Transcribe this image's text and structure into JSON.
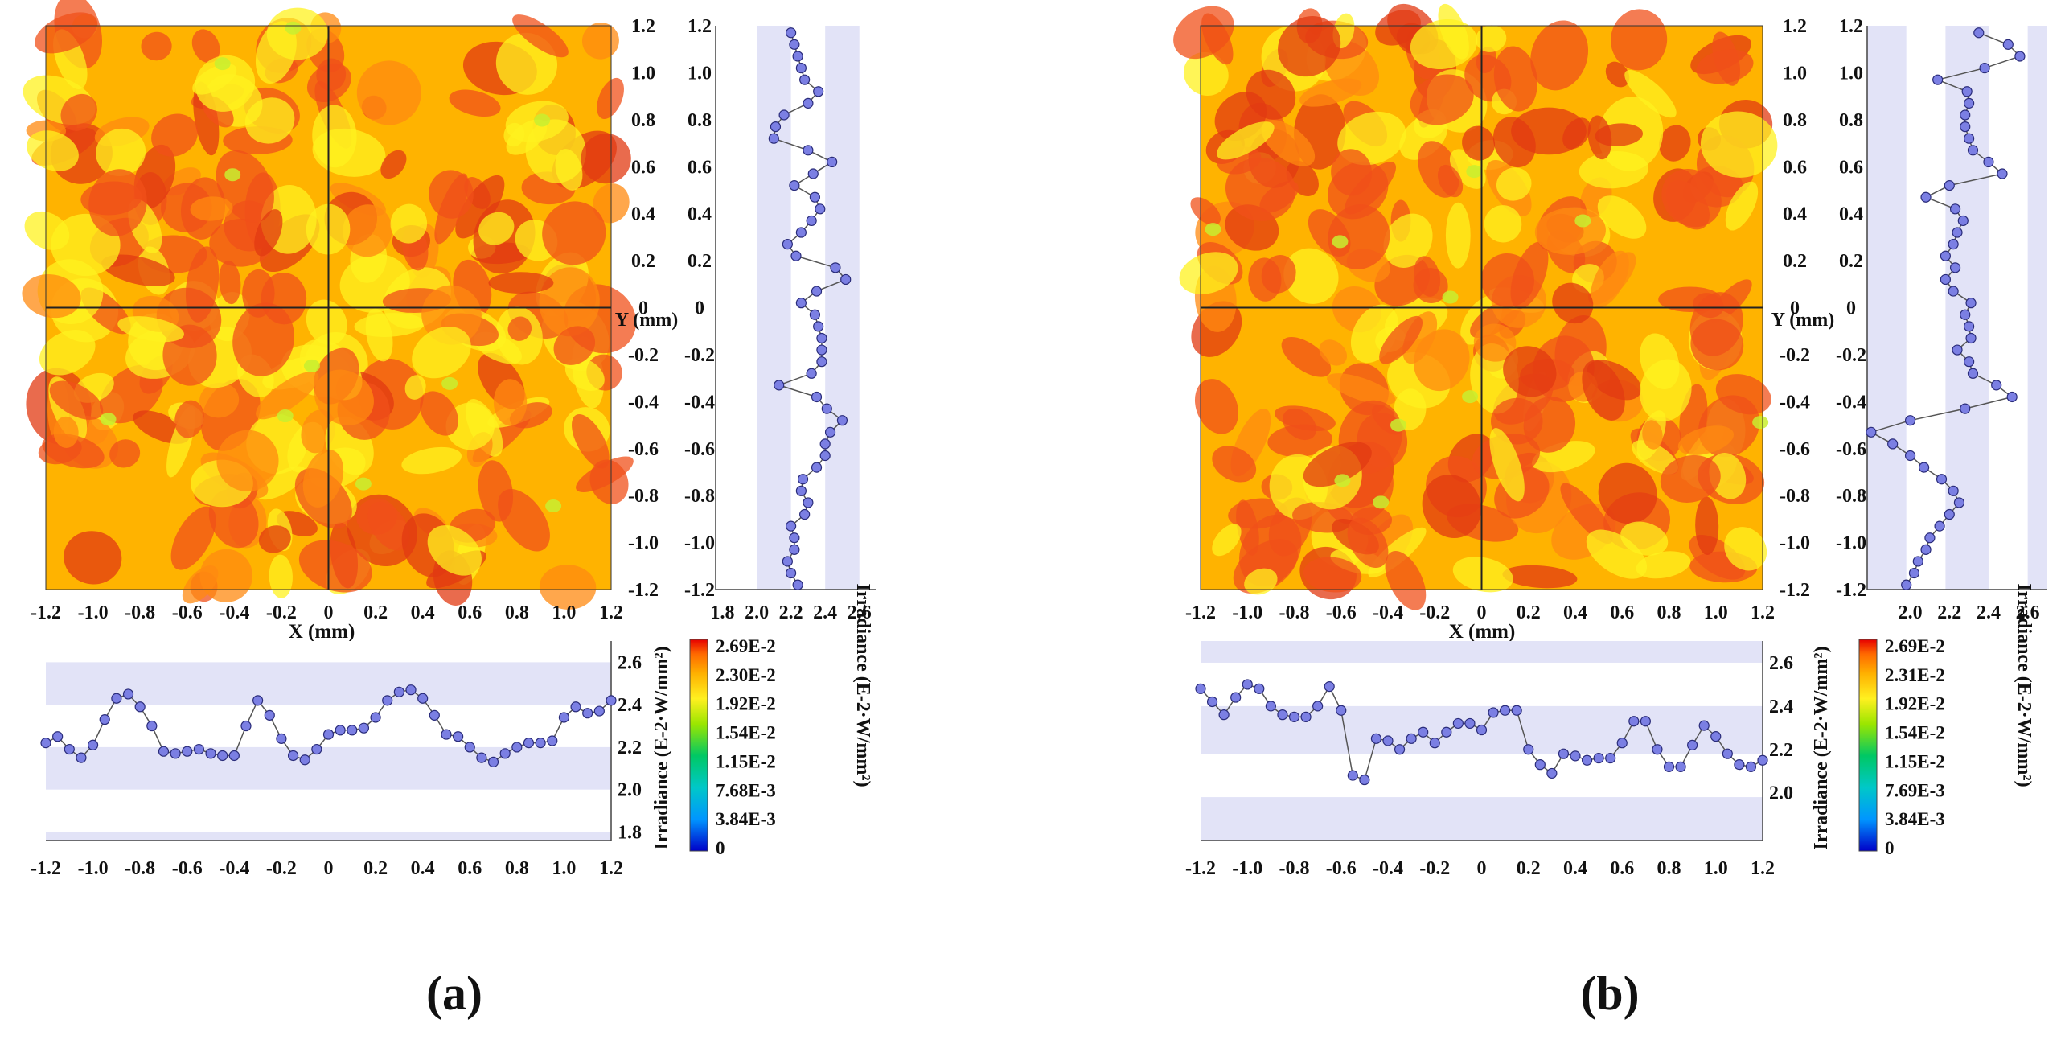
{
  "panels": [
    {
      "label": "(a)"
    },
    {
      "label": "(b)"
    }
  ],
  "colors": {
    "marker_fill": "#7b7fe3",
    "marker_stroke": "#2a2c7a",
    "line": "#555555",
    "band": "#e2e3f7",
    "map_low": "#fff21f",
    "map_mid": "#ffb300",
    "map_high": "#f0501a"
  },
  "chart_data": [
    {
      "type": "heatmap",
      "panel": "(a)",
      "title": "",
      "xlabel": "X (mm)",
      "ylabel": "Y (mm)",
      "xlim": [
        -1.2,
        1.2
      ],
      "ylim": [
        -1.2,
        1.2
      ],
      "ticks": [
        "-1.2",
        "-1.0",
        "-0.8",
        "-0.6",
        "-0.4",
        "-0.2",
        "0",
        "0.2",
        "0.4",
        "0.6",
        "0.8",
        "1.0",
        "1.2"
      ],
      "colorbar": {
        "label": "Irradiance (E-2·W/mm²)",
        "tick_labels": [
          "2.69E-2",
          "2.30E-2",
          "1.92E-2",
          "1.54E-2",
          "1.15E-2",
          "7.68E-3",
          "3.84E-3",
          "0"
        ]
      },
      "seed": 11,
      "sub_charts": [
        {
          "type": "line",
          "name": "horizontal profile",
          "ylabel": "Irradiance (E-2·W/mm²)",
          "ylim": [
            1.76,
            2.7
          ],
          "yticks": [
            "1.8",
            "2.0",
            "2.2",
            "2.4",
            "2.6"
          ],
          "bands": [
            [
              1.76,
              1.8
            ],
            [
              2.0,
              2.2
            ],
            [
              2.4,
              2.6
            ]
          ],
          "x": [
            -1.2,
            -1.15,
            -1.1,
            -1.05,
            -1.0,
            -0.95,
            -0.9,
            -0.85,
            -0.8,
            -0.75,
            -0.7,
            -0.65,
            -0.6,
            -0.55,
            -0.5,
            -0.45,
            -0.4,
            -0.35,
            -0.3,
            -0.25,
            -0.2,
            -0.15,
            -0.1,
            -0.05,
            0,
            0.05,
            0.1,
            0.15,
            0.2,
            0.25,
            0.3,
            0.35,
            0.4,
            0.45,
            0.5,
            0.55,
            0.6,
            0.65,
            0.7,
            0.75,
            0.8,
            0.85,
            0.9,
            0.95,
            1.0,
            1.05,
            1.1,
            1.15,
            1.2
          ],
          "values": [
            2.22,
            2.25,
            2.19,
            2.15,
            2.21,
            2.33,
            2.43,
            2.45,
            2.39,
            2.3,
            2.18,
            2.17,
            2.18,
            2.19,
            2.17,
            2.16,
            2.16,
            2.3,
            2.42,
            2.35,
            2.24,
            2.16,
            2.14,
            2.19,
            2.26,
            2.28,
            2.28,
            2.29,
            2.34,
            2.42,
            2.46,
            2.47,
            2.43,
            2.35,
            2.26,
            2.25,
            2.2,
            2.15,
            2.13,
            2.17,
            2.2,
            2.22,
            2.22,
            2.23,
            2.34,
            2.39,
            2.36,
            2.37,
            2.42
          ]
        },
        {
          "type": "line",
          "name": "vertical profile",
          "xlabel": "Irradiance (E-2·W/mm²)",
          "xlim": [
            1.76,
            2.7
          ],
          "xticks": [
            "1.8",
            "2.0",
            "2.2",
            "2.4",
            "2.6"
          ],
          "bands": [
            [
              2.0,
              2.2
            ],
            [
              2.4,
              2.6
            ]
          ],
          "y": [
            1.17,
            1.12,
            1.07,
            1.02,
            0.97,
            0.92,
            0.87,
            0.82,
            0.77,
            0.72,
            0.67,
            0.62,
            0.57,
            0.52,
            0.47,
            0.42,
            0.37,
            0.32,
            0.27,
            0.22,
            0.17,
            0.12,
            0.07,
            0.02,
            -0.03,
            -0.08,
            -0.13,
            -0.18,
            -0.23,
            -0.28,
            -0.33,
            -0.38,
            -0.43,
            -0.48,
            -0.53,
            -0.58,
            -0.63,
            -0.68,
            -0.73,
            -0.78,
            -0.83,
            -0.88,
            -0.93,
            -0.98,
            -1.03,
            -1.08,
            -1.13,
            -1.18
          ],
          "values": [
            2.2,
            2.22,
            2.24,
            2.26,
            2.28,
            2.36,
            2.3,
            2.16,
            2.11,
            2.1,
            2.3,
            2.44,
            2.33,
            2.22,
            2.34,
            2.37,
            2.32,
            2.26,
            2.18,
            2.23,
            2.46,
            2.52,
            2.35,
            2.26,
            2.34,
            2.36,
            2.38,
            2.38,
            2.38,
            2.32,
            2.13,
            2.35,
            2.41,
            2.5,
            2.43,
            2.4,
            2.4,
            2.35,
            2.27,
            2.26,
            2.3,
            2.28,
            2.2,
            2.22,
            2.22,
            2.18,
            2.2,
            2.24
          ]
        }
      ]
    },
    {
      "type": "heatmap",
      "panel": "(b)",
      "title": "",
      "xlabel": "X (mm)",
      "ylabel": "Y (mm)",
      "xlim": [
        -1.2,
        1.2
      ],
      "ylim": [
        -1.2,
        1.2
      ],
      "ticks": [
        "-1.2",
        "-1.0",
        "-0.8",
        "-0.6",
        "-0.4",
        "-0.2",
        "0",
        "0.2",
        "0.4",
        "0.6",
        "0.8",
        "1.0",
        "1.2"
      ],
      "colorbar": {
        "label": "Irradiance (E-2·W/mm²)",
        "tick_labels": [
          "2.69E-2",
          "2.31E-2",
          "1.92E-2",
          "1.54E-2",
          "1.15E-2",
          "7.69E-3",
          "3.84E-3",
          "0"
        ]
      },
      "seed": 29,
      "sub_charts": [
        {
          "type": "line",
          "name": "horizontal profile",
          "ylabel": "Irradiance (E-2·W/mm²)",
          "ylim": [
            1.78,
            2.7
          ],
          "yticks": [
            "2.0",
            "2.2",
            "2.4",
            "2.6"
          ],
          "bands": [
            [
              1.78,
              1.98
            ],
            [
              2.18,
              2.4
            ],
            [
              2.6,
              2.7
            ]
          ],
          "x": [
            -1.2,
            -1.15,
            -1.1,
            -1.05,
            -1.0,
            -0.95,
            -0.9,
            -0.85,
            -0.8,
            -0.75,
            -0.7,
            -0.65,
            -0.6,
            -0.55,
            -0.5,
            -0.45,
            -0.4,
            -0.35,
            -0.3,
            -0.25,
            -0.2,
            -0.15,
            -0.1,
            -0.05,
            0,
            0.05,
            0.1,
            0.15,
            0.2,
            0.25,
            0.3,
            0.35,
            0.4,
            0.45,
            0.5,
            0.55,
            0.6,
            0.65,
            0.7,
            0.75,
            0.8,
            0.85,
            0.9,
            0.95,
            1.0,
            1.05,
            1.1,
            1.15,
            1.2
          ],
          "values": [
            2.48,
            2.42,
            2.36,
            2.44,
            2.5,
            2.48,
            2.4,
            2.36,
            2.35,
            2.35,
            2.4,
            2.49,
            2.38,
            2.08,
            2.06,
            2.25,
            2.24,
            2.2,
            2.25,
            2.28,
            2.23,
            2.28,
            2.32,
            2.32,
            2.29,
            2.37,
            2.38,
            2.38,
            2.2,
            2.13,
            2.09,
            2.18,
            2.17,
            2.15,
            2.16,
            2.16,
            2.23,
            2.33,
            2.33,
            2.2,
            2.12,
            2.12,
            2.22,
            2.31,
            2.26,
            2.18,
            2.13,
            2.12,
            2.15
          ]
        },
        {
          "type": "line",
          "name": "vertical profile",
          "xlabel": "Irradiance (E-2·W/mm²)",
          "xlim": [
            1.78,
            2.7
          ],
          "xticks": [
            "2.0",
            "2.2",
            "2.4",
            "2.6"
          ],
          "bands": [
            [
              1.78,
              1.98
            ],
            [
              2.18,
              2.4
            ],
            [
              2.6,
              2.7
            ]
          ],
          "y": [
            1.17,
            1.12,
            1.07,
            1.02,
            0.97,
            0.92,
            0.87,
            0.82,
            0.77,
            0.72,
            0.67,
            0.62,
            0.57,
            0.52,
            0.47,
            0.42,
            0.37,
            0.32,
            0.27,
            0.22,
            0.17,
            0.12,
            0.07,
            0.02,
            -0.03,
            -0.08,
            -0.13,
            -0.18,
            -0.23,
            -0.28,
            -0.33,
            -0.38,
            -0.43,
            -0.48,
            -0.53,
            -0.58,
            -0.63,
            -0.68,
            -0.73,
            -0.78,
            -0.83,
            -0.88,
            -0.93,
            -0.98,
            -1.03,
            -1.08,
            -1.13,
            -1.18
          ],
          "values": [
            2.35,
            2.5,
            2.56,
            2.38,
            2.14,
            2.29,
            2.3,
            2.28,
            2.28,
            2.3,
            2.32,
            2.4,
            2.47,
            2.2,
            2.08,
            2.23,
            2.27,
            2.24,
            2.22,
            2.18,
            2.23,
            2.18,
            2.22,
            2.31,
            2.28,
            2.3,
            2.31,
            2.24,
            2.3,
            2.32,
            2.44,
            2.52,
            2.28,
            2.0,
            1.8,
            1.91,
            2.0,
            2.07,
            2.16,
            2.22,
            2.25,
            2.2,
            2.15,
            2.1,
            2.08,
            2.04,
            2.02,
            1.98
          ]
        }
      ]
    }
  ]
}
